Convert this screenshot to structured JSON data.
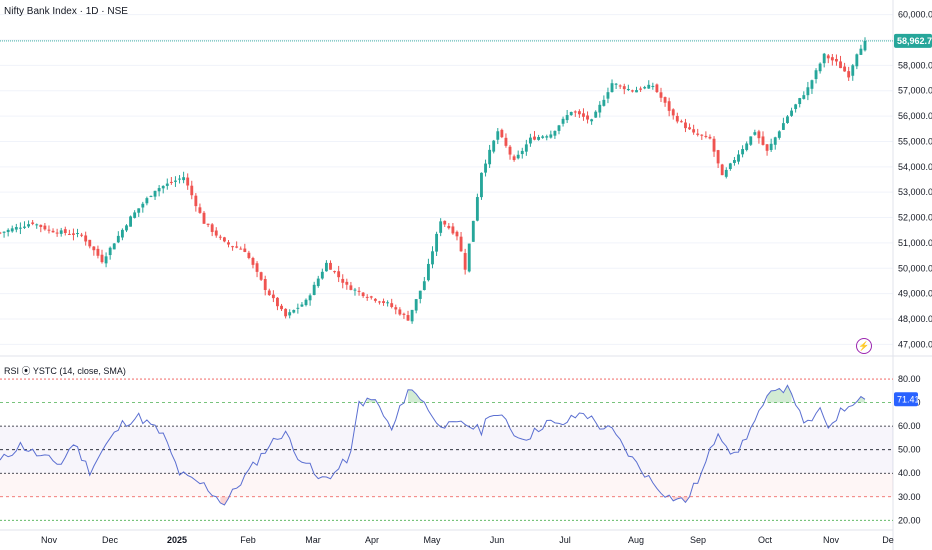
{
  "header": {
    "title": "Nifty Bank Index · 1D · NSE"
  },
  "rsi": {
    "title": "RSI ⦿ YSTC (14, close, SMA)",
    "value_label": "71.41"
  },
  "price_badge": "58,962.70",
  "colors": {
    "up": "#26a69a",
    "down": "#ef5350",
    "rsi_line": "#5b6fd1",
    "price_line": "#26a69a",
    "accent": "#9c27b0"
  },
  "icons": {
    "alert": "lightning-icon"
  },
  "chart_data": [
    {
      "type": "candlestick",
      "title": "Nifty Bank Index · 1D · NSE",
      "y_ticks": [
        "60,000.00",
        "59,000.00",
        "58,000.00",
        "57,000.00",
        "56,000.00",
        "55,000.00",
        "54,000.00",
        "53,000.00",
        "52,000.00",
        "51,000.00",
        "50,000.00",
        "49,000.00",
        "48,000.00",
        "47,000.00"
      ],
      "ylim": [
        46700,
        60300
      ],
      "last_price": 58962.7,
      "x_ticks": [
        "Nov",
        "Dec",
        "2025",
        "Feb",
        "Mar",
        "Apr",
        "May",
        "Jun",
        "Jul",
        "Aug",
        "Sep",
        "Oct",
        "Nov",
        "De"
      ],
      "anchors": [
        [
          0,
          51400
        ],
        [
          8,
          51800
        ],
        [
          12,
          51500
        ],
        [
          20,
          51300
        ],
        [
          25,
          50300
        ],
        [
          32,
          52000
        ],
        [
          38,
          53100
        ],
        [
          45,
          53600
        ],
        [
          50,
          51800
        ],
        [
          55,
          51000
        ],
        [
          60,
          50700
        ],
        [
          65,
          49200
        ],
        [
          70,
          48100
        ],
        [
          75,
          48700
        ],
        [
          80,
          50200
        ],
        [
          85,
          49300
        ],
        [
          90,
          48900
        ],
        [
          95,
          48600
        ],
        [
          100,
          48000
        ],
        [
          104,
          49500
        ],
        [
          108,
          51900
        ],
        [
          112,
          51300
        ],
        [
          114,
          50000
        ],
        [
          118,
          53800
        ],
        [
          122,
          55400
        ],
        [
          126,
          54200
        ],
        [
          130,
          55100
        ],
        [
          135,
          55300
        ],
        [
          140,
          56200
        ],
        [
          145,
          55800
        ],
        [
          150,
          57300
        ],
        [
          155,
          57000
        ],
        [
          160,
          57200
        ],
        [
          165,
          56000
        ],
        [
          170,
          55300
        ],
        [
          174,
          55100
        ],
        [
          177,
          53600
        ],
        [
          180,
          54300
        ],
        [
          185,
          55400
        ],
        [
          188,
          54600
        ],
        [
          193,
          56000
        ],
        [
          198,
          57100
        ],
        [
          202,
          58400
        ],
        [
          205,
          58100
        ],
        [
          208,
          57600
        ],
        [
          210,
          58500
        ],
        [
          212,
          58960
        ]
      ],
      "n_candles": 213
    },
    {
      "type": "line",
      "title": "RSI ⦿ YSTC (14, close, SMA)",
      "y_ticks": [
        "80.00",
        "70.00",
        "60.00",
        "50.00",
        "40.00",
        "30.00",
        "20.00"
      ],
      "ylim": [
        18,
        83
      ],
      "levels": [
        80,
        70,
        60,
        50,
        40,
        30,
        20
      ],
      "anchors": [
        [
          0,
          45
        ],
        [
          5,
          52
        ],
        [
          10,
          47
        ],
        [
          15,
          44
        ],
        [
          18,
          53
        ],
        [
          22,
          41
        ],
        [
          26,
          52
        ],
        [
          30,
          61
        ],
        [
          34,
          64
        ],
        [
          38,
          59
        ],
        [
          40,
          56
        ],
        [
          42,
          48
        ],
        [
          44,
          40
        ],
        [
          47,
          37
        ],
        [
          50,
          35
        ],
        [
          53,
          30
        ],
        [
          55,
          27
        ],
        [
          58,
          34
        ],
        [
          62,
          43
        ],
        [
          66,
          52
        ],
        [
          70,
          58
        ],
        [
          72,
          49
        ],
        [
          75,
          45
        ],
        [
          78,
          37
        ],
        [
          82,
          40
        ],
        [
          86,
          48
        ],
        [
          88,
          70
        ],
        [
          92,
          71
        ],
        [
          96,
          58
        ],
        [
          100,
          76
        ],
        [
          104,
          71
        ],
        [
          106,
          63
        ],
        [
          110,
          60
        ],
        [
          114,
          61
        ],
        [
          118,
          58
        ],
        [
          120,
          66
        ],
        [
          124,
          62
        ],
        [
          127,
          55
        ],
        [
          130,
          56
        ],
        [
          134,
          62
        ],
        [
          137,
          60
        ],
        [
          140,
          63
        ],
        [
          143,
          66
        ],
        [
          147,
          60
        ],
        [
          150,
          58
        ],
        [
          155,
          46
        ],
        [
          160,
          36
        ],
        [
          164,
          30
        ],
        [
          168,
          28
        ],
        [
          172,
          40
        ],
        [
          176,
          58
        ],
        [
          180,
          47
        ],
        [
          185,
          62
        ],
        [
          190,
          77
        ],
        [
          194,
          75
        ],
        [
          197,
          60
        ],
        [
          201,
          66
        ],
        [
          203,
          60
        ],
        [
          206,
          66
        ],
        [
          210,
          72
        ]
      ]
    }
  ]
}
